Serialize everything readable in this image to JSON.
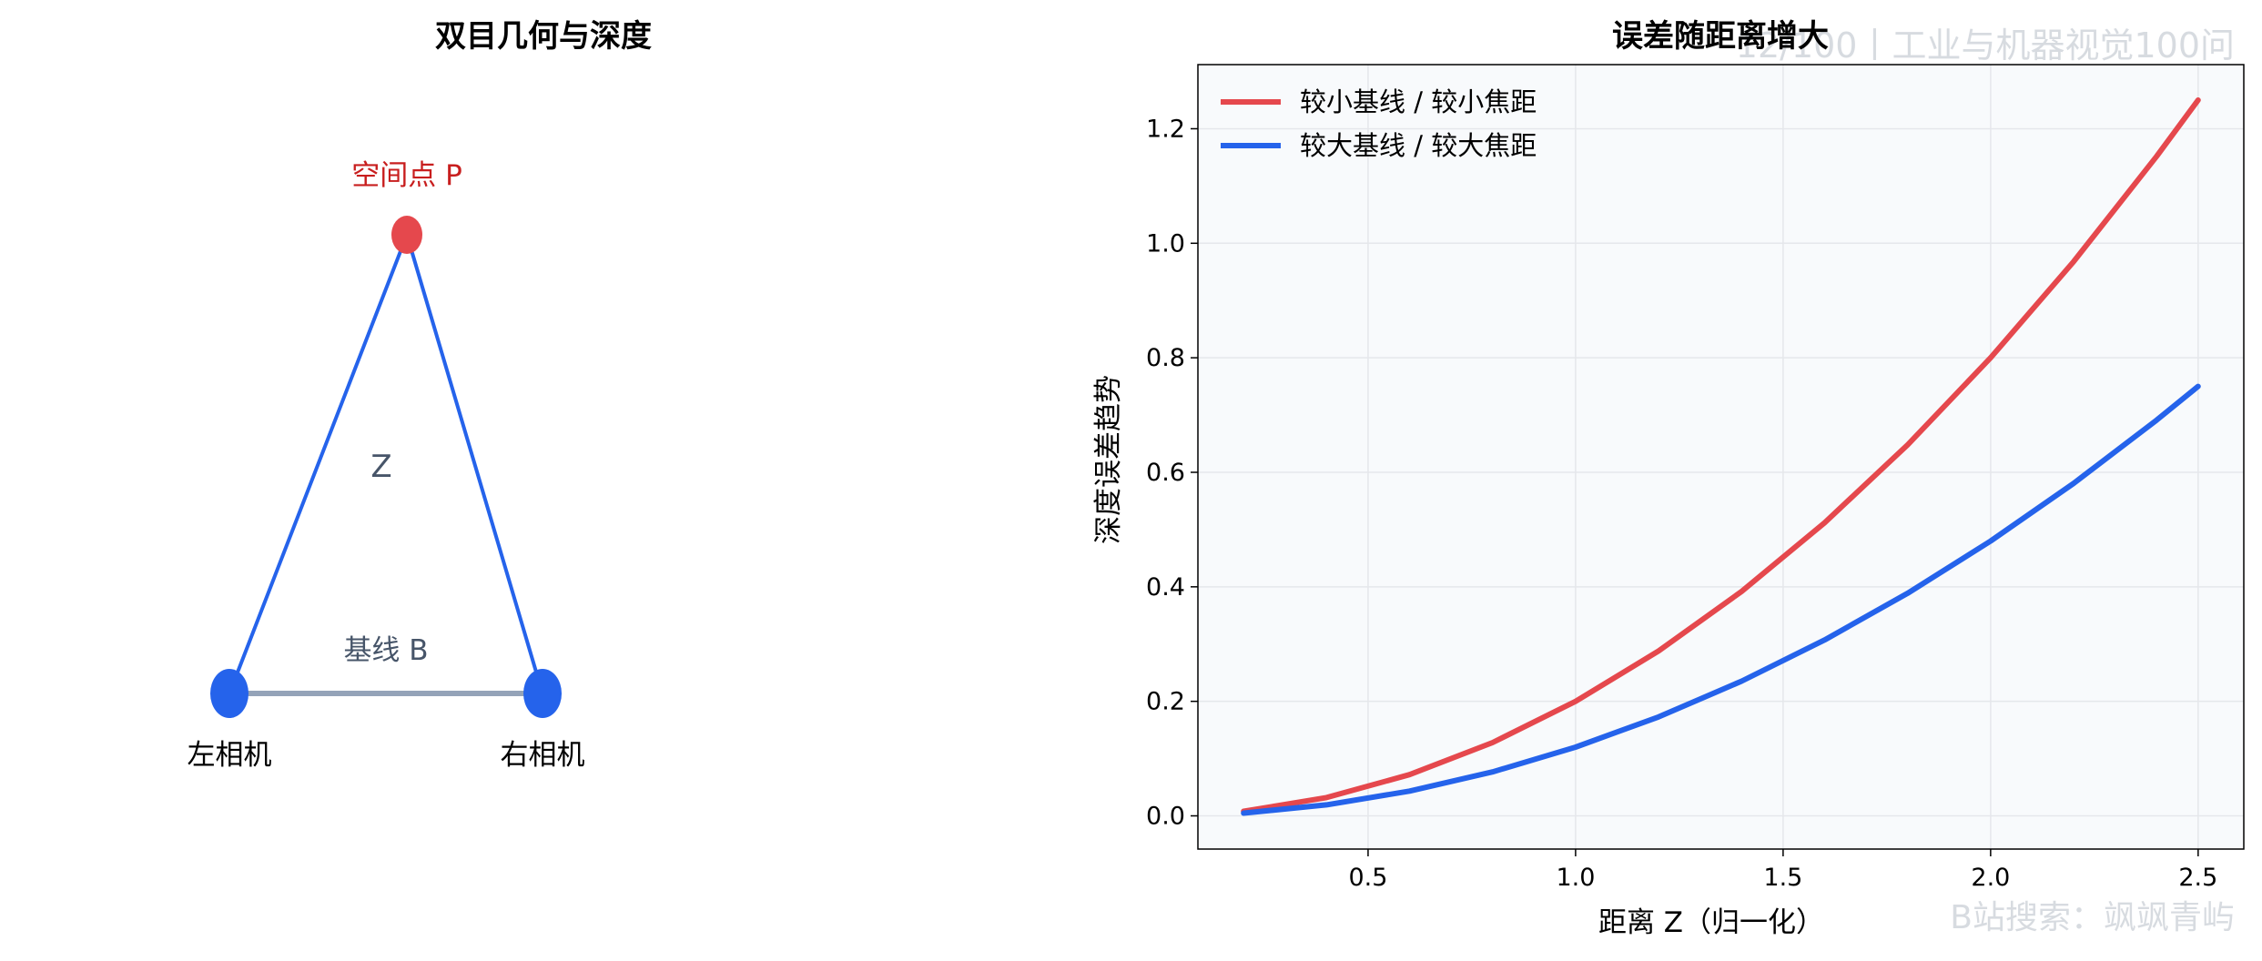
{
  "watermarks": {
    "top": "12/100丨工业与机器视觉100问",
    "bottom": "B站搜索：飒飒青屿"
  },
  "colors": {
    "red": "#e5484d",
    "blue": "#2563eb",
    "baseline": "#94a3b8",
    "axis_text": "#000000",
    "grid": "#e5e7eb",
    "plot_bg": "#f8fafc",
    "label_slate": "#475569",
    "point_label": "#c81e1e"
  },
  "diagram": {
    "title": "双目几何与深度",
    "point_label": "空间点 P",
    "depth_label": "Z",
    "baseline_label": "基线 B",
    "left_camera_label": "左相机",
    "right_camera_label": "右相机"
  },
  "chart_data": {
    "type": "line",
    "title": "误差随距离增大",
    "xlabel": "距离 Z（归一化）",
    "ylabel": "深度误差趋势",
    "xlim": [
      0.09,
      2.61
    ],
    "ylim": [
      -0.058,
      1.312
    ],
    "xticks": [
      "0.5",
      "1.0",
      "1.5",
      "2.0",
      "2.5"
    ],
    "yticks": [
      "0.0",
      "0.2",
      "0.4",
      "0.6",
      "0.8",
      "1.0",
      "1.2"
    ],
    "grid": true,
    "legend_position": "top-left",
    "series": [
      {
        "name": "较小基线 / 较小焦距",
        "color": "#e5484d",
        "x": [
          0.2,
          0.4,
          0.6,
          0.8,
          1.0,
          1.2,
          1.4,
          1.6,
          1.8,
          2.0,
          2.2,
          2.4,
          2.5
        ],
        "y": [
          0.008,
          0.032,
          0.072,
          0.128,
          0.2,
          0.288,
          0.392,
          0.512,
          0.648,
          0.8,
          0.968,
          1.152,
          1.25
        ]
      },
      {
        "name": "较大基线 / 较大焦距",
        "color": "#2563eb",
        "x": [
          0.2,
          0.4,
          0.6,
          0.8,
          1.0,
          1.2,
          1.4,
          1.6,
          1.8,
          2.0,
          2.2,
          2.4,
          2.5
        ],
        "y": [
          0.0048,
          0.0192,
          0.0432,
          0.0768,
          0.12,
          0.1728,
          0.2352,
          0.3072,
          0.3888,
          0.48,
          0.5808,
          0.6912,
          0.75
        ]
      }
    ]
  }
}
